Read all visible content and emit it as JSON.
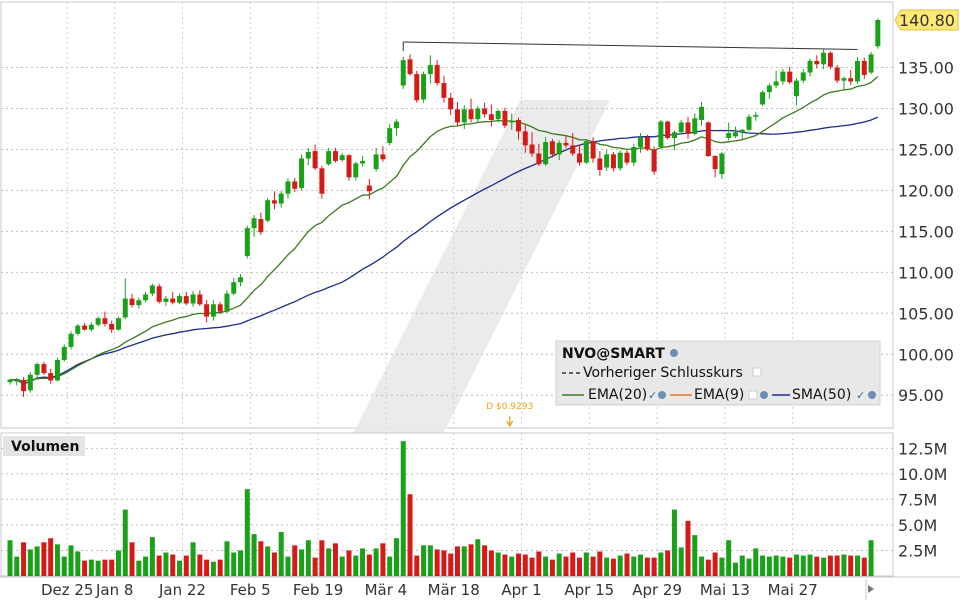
{
  "chart_data": {
    "type": "candlestick",
    "symbol": "NVO@SMART",
    "last_price_label": "140.80",
    "dividend_marker": "D $0.9293",
    "price_axis": {
      "ylim": [
        91,
        143
      ],
      "ticks": [
        "95.00",
        "100.00",
        "105.00",
        "110.00",
        "115.00",
        "120.00",
        "125.00",
        "130.00",
        "135.00",
        "140.80"
      ]
    },
    "date_ticks": [
      "Dez 25",
      "Jan 8",
      "Jan 22",
      "Feb 5",
      "Feb 19",
      "Mär 4",
      "Mär 18",
      "Apr 1",
      "Apr 15",
      "Apr 29",
      "Mai 13",
      "Mai 27"
    ],
    "volume_axis": {
      "ylim": [
        0,
        14000000
      ],
      "ticks": [
        "2.5M",
        "5.0M",
        "7.5M",
        "10.0M",
        "12.5M"
      ]
    },
    "volume_title": "Volumen",
    "legend": {
      "title": "NVO@SMART",
      "prev_close": "Vorheriger Schlusskurs",
      "ema20": "EMA(20)",
      "ema9": "EMA(9)",
      "sma50": "SMA(50)"
    },
    "trendline": {
      "start_index": 58,
      "end_index": 125,
      "start_value": 138,
      "end_value": 137.2
    },
    "candles": [
      [
        96.6,
        97.0,
        96.3,
        96.9
      ],
      [
        96.7,
        97.1,
        96.2,
        96.8
      ],
      [
        96.8,
        97.2,
        94.8,
        95.5
      ],
      [
        95.6,
        97.8,
        95.3,
        97.5
      ],
      [
        97.5,
        99.0,
        97.2,
        98.8
      ],
      [
        98.8,
        99.1,
        97.5,
        97.7
      ],
      [
        97.7,
        98.2,
        96.4,
        96.8
      ],
      [
        96.8,
        99.6,
        96.7,
        99.3
      ],
      [
        99.3,
        101.2,
        99.1,
        100.9
      ],
      [
        100.9,
        102.8,
        100.6,
        102.5
      ],
      [
        102.5,
        103.7,
        102.3,
        103.5
      ],
      [
        103.5,
        103.8,
        102.9,
        103.0
      ],
      [
        103.0,
        103.9,
        102.8,
        103.6
      ],
      [
        103.6,
        104.6,
        103.4,
        104.4
      ],
      [
        104.4,
        105.2,
        103.4,
        103.7
      ],
      [
        103.7,
        104.1,
        102.6,
        103.0
      ],
      [
        103.0,
        104.6,
        102.9,
        104.4
      ],
      [
        104.5,
        109.3,
        104.3,
        106.8
      ],
      [
        106.8,
        107.4,
        105.7,
        106.0
      ],
      [
        106.0,
        106.9,
        105.6,
        106.6
      ],
      [
        106.6,
        107.6,
        106.3,
        107.3
      ],
      [
        107.4,
        108.6,
        107.1,
        108.4
      ],
      [
        108.3,
        108.6,
        106.2,
        106.4
      ],
      [
        106.4,
        107.1,
        105.9,
        106.8
      ],
      [
        106.8,
        107.6,
        106.1,
        106.3
      ],
      [
        106.3,
        107.4,
        106.1,
        107.1
      ],
      [
        107.1,
        107.6,
        106.0,
        106.2
      ],
      [
        106.2,
        107.7,
        105.8,
        107.3
      ],
      [
        107.3,
        107.8,
        105.9,
        106.1
      ],
      [
        106.1,
        106.6,
        103.9,
        104.6
      ],
      [
        104.6,
        106.6,
        104.1,
        106.1
      ],
      [
        106.1,
        106.4,
        104.9,
        105.2
      ],
      [
        105.2,
        107.8,
        105.0,
        107.4
      ],
      [
        107.4,
        109.3,
        107.2,
        108.8
      ],
      [
        108.8,
        109.8,
        108.3,
        109.4
      ],
      [
        112.0,
        115.7,
        111.7,
        115.4
      ],
      [
        115.4,
        117.0,
        114.3,
        116.6
      ],
      [
        116.5,
        117.3,
        114.6,
        114.9
      ],
      [
        116.3,
        119.1,
        116.1,
        118.8
      ],
      [
        118.8,
        119.9,
        117.7,
        118.4
      ],
      [
        118.4,
        119.9,
        117.9,
        119.6
      ],
      [
        119.6,
        121.5,
        119.0,
        121.1
      ],
      [
        121.1,
        121.5,
        119.8,
        120.2
      ],
      [
        120.3,
        124.4,
        120.0,
        123.9
      ],
      [
        123.9,
        125.2,
        123.1,
        124.7
      ],
      [
        124.8,
        125.6,
        122.5,
        122.7
      ],
      [
        122.7,
        123.0,
        119.0,
        119.6
      ],
      [
        123.2,
        125.2,
        123.0,
        124.8
      ],
      [
        124.8,
        125.2,
        123.4,
        123.6
      ],
      [
        123.7,
        124.6,
        123.5,
        124.3
      ],
      [
        124.3,
        124.4,
        121.2,
        121.6
      ],
      [
        121.6,
        123.5,
        121.2,
        123.3
      ],
      [
        123.3,
        124.2,
        122.9,
        123.6
      ],
      [
        120.6,
        121.4,
        118.9,
        119.9
      ],
      [
        122.6,
        125.2,
        122.3,
        124.4
      ],
      [
        124.4,
        125.4,
        123.5,
        123.8
      ],
      [
        125.8,
        128.1,
        125.5,
        127.6
      ],
      [
        127.6,
        128.7,
        126.7,
        128.4
      ],
      [
        132.8,
        136.3,
        132.4,
        135.9
      ],
      [
        136.0,
        136.6,
        134.0,
        134.2
      ],
      [
        134.2,
        134.6,
        130.7,
        131.0
      ],
      [
        131.1,
        134.5,
        130.7,
        134.2
      ],
      [
        134.2,
        136.5,
        133.1,
        135.3
      ],
      [
        135.3,
        135.9,
        132.8,
        133.1
      ],
      [
        133.1,
        134.0,
        130.7,
        131.3
      ],
      [
        131.3,
        131.9,
        129.2,
        129.9
      ],
      [
        129.9,
        130.8,
        127.9,
        128.3
      ],
      [
        128.3,
        130.4,
        127.5,
        129.9
      ],
      [
        129.9,
        131.2,
        128.3,
        128.7
      ],
      [
        128.7,
        130.3,
        128.3,
        130.0
      ],
      [
        130.0,
        130.7,
        128.9,
        129.3
      ],
      [
        129.3,
        130.5,
        127.8,
        128.6
      ],
      [
        128.7,
        129.9,
        128.3,
        129.7
      ],
      [
        129.7,
        130.1,
        127.6,
        127.9
      ],
      [
        128.3,
        129.4,
        127.4,
        128.5
      ],
      [
        128.6,
        128.9,
        126.2,
        127.2
      ],
      [
        127.2,
        128.0,
        124.6,
        125.5
      ],
      [
        125.6,
        127.1,
        124.1,
        124.5
      ],
      [
        124.5,
        125.7,
        123.0,
        123.2
      ],
      [
        123.2,
        126.5,
        123.0,
        125.9
      ],
      [
        126.0,
        126.3,
        124.0,
        124.4
      ],
      [
        124.4,
        126.1,
        123.7,
        125.8
      ],
      [
        125.8,
        126.6,
        125.2,
        125.5
      ],
      [
        125.5,
        127.0,
        124.2,
        124.5
      ],
      [
        124.5,
        125.6,
        123.0,
        123.4
      ],
      [
        123.4,
        126.3,
        123.2,
        126.0
      ],
      [
        126.0,
        126.5,
        123.4,
        123.9
      ],
      [
        123.9,
        124.8,
        121.8,
        122.5
      ],
      [
        122.8,
        124.9,
        122.4,
        124.4
      ],
      [
        124.4,
        124.7,
        122.3,
        122.7
      ],
      [
        122.7,
        124.9,
        122.4,
        124.6
      ],
      [
        124.6,
        124.9,
        123.1,
        123.4
      ],
      [
        123.4,
        125.7,
        123.0,
        125.3
      ],
      [
        125.3,
        127.0,
        124.6,
        126.5
      ],
      [
        126.5,
        126.8,
        124.8,
        125.0
      ],
      [
        125.0,
        125.4,
        121.9,
        122.3
      ],
      [
        125.3,
        128.6,
        125.1,
        128.4
      ],
      [
        128.4,
        128.5,
        126.2,
        126.4
      ],
      [
        126.4,
        127.3,
        124.9,
        127.1
      ],
      [
        127.1,
        128.6,
        126.9,
        128.3
      ],
      [
        128.3,
        129.0,
        126.3,
        126.9
      ],
      [
        126.9,
        129.4,
        126.7,
        128.8
      ],
      [
        128.6,
        130.8,
        127.9,
        130.2
      ],
      [
        128.3,
        128.4,
        124.1,
        124.2
      ],
      [
        124.2,
        124.3,
        121.6,
        122.6
      ],
      [
        122.0,
        124.7,
        121.4,
        124.5
      ],
      [
        126.4,
        128.3,
        126.1,
        127.0
      ],
      [
        126.6,
        127.8,
        126.4,
        127.1
      ],
      [
        127.1,
        127.5,
        126.3,
        127.4
      ],
      [
        127.4,
        129.3,
        127.2,
        129.0
      ],
      [
        129.0,
        129.6,
        128.5,
        129.2
      ],
      [
        130.5,
        132.2,
        130.3,
        132.0
      ],
      [
        132.0,
        133.1,
        131.2,
        132.8
      ],
      [
        132.8,
        134.6,
        132.5,
        133.3
      ],
      [
        133.3,
        134.8,
        132.9,
        134.5
      ],
      [
        134.5,
        135.1,
        133.0,
        133.2
      ],
      [
        131.5,
        133.7,
        130.4,
        133.4
      ],
      [
        133.4,
        134.8,
        133.1,
        134.4
      ],
      [
        134.4,
        136.1,
        133.9,
        135.8
      ],
      [
        135.8,
        136.5,
        134.9,
        135.4
      ],
      [
        135.4,
        137.2,
        134.8,
        136.8
      ],
      [
        136.8,
        137.0,
        134.8,
        135.1
      ],
      [
        135.0,
        135.3,
        133.1,
        133.4
      ],
      [
        133.4,
        133.9,
        132.3,
        133.7
      ],
      [
        133.7,
        134.7,
        132.9,
        133.3
      ],
      [
        133.3,
        136.3,
        133.0,
        135.8
      ],
      [
        135.8,
        136.2,
        133.6,
        134.1
      ],
      [
        134.4,
        136.9,
        134.2,
        136.6
      ],
      [
        137.6,
        141.0,
        137.3,
        140.8
      ]
    ],
    "volumes": [
      3.5,
      1.9,
      3.3,
      2.6,
      2.9,
      3.3,
      3.7,
      3.1,
      1.9,
      3.0,
      2.4,
      1.5,
      1.6,
      1.5,
      1.6,
      1.6,
      2.5,
      6.5,
      3.3,
      1.5,
      1.9,
      3.8,
      2.0,
      2.3,
      2.1,
      1.5,
      2.0,
      3.3,
      2.1,
      1.6,
      1.4,
      1.6,
      3.4,
      2.3,
      2.5,
      8.5,
      4.1,
      3.4,
      2.9,
      2.3,
      4.3,
      1.9,
      3.0,
      2.6,
      3.5,
      1.8,
      3.5,
      2.7,
      3.2,
      1.9,
      2.5,
      2.0,
      2.7,
      2.1,
      2.7,
      3.2,
      1.9,
      3.7,
      13.2,
      8.0,
      2.0,
      3.0,
      3.0,
      2.6,
      2.5,
      2.2,
      2.9,
      2.9,
      3.1,
      3.6,
      3.0,
      2.5,
      2.3,
      2.1,
      1.9,
      2.2,
      2.1,
      1.8,
      2.4,
      1.9,
      1.6,
      2.2,
      1.9,
      2.3,
      1.8,
      2.3,
      1.9,
      2.4,
      1.8,
      1.7,
      2.0,
      2.2,
      1.9,
      2.1,
      1.8,
      1.8,
      2.3,
      2.5,
      6.5,
      2.8,
      5.4,
      4.0,
      1.9,
      1.6,
      2.3,
      1.8,
      3.5,
      1.3,
      2.0,
      1.7,
      2.7,
      2.0,
      1.9,
      2.0,
      1.9,
      1.8,
      2.1,
      2.0,
      2.1,
      1.9,
      1.8,
      2.0,
      2.0,
      2.1,
      2.0,
      2.0,
      1.8,
      3.5
    ]
  }
}
